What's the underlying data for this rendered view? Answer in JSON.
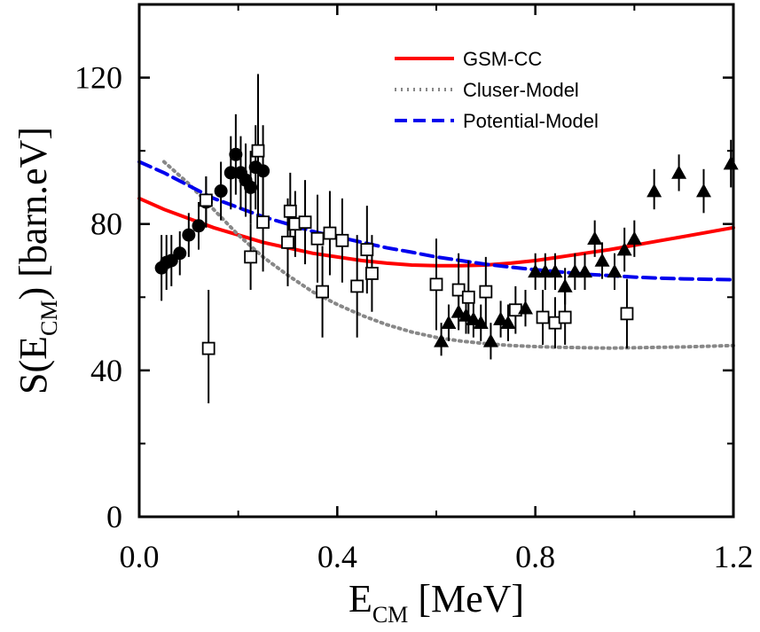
{
  "chart_data": {
    "type": "scatter",
    "title": "",
    "xlabel_main": "E",
    "xlabel_sub": "CM",
    "xlabel_rest": " [MeV]",
    "ylabel_main": "S(E",
    "ylabel_sub": "CM",
    "ylabel_rest": ") [barn.eV]",
    "xlim": [
      0.0,
      1.2
    ],
    "ylim": [
      0,
      140
    ],
    "xticks": [
      0.0,
      0.4,
      0.8,
      1.2
    ],
    "xtick_labels": [
      "0.0",
      "0.4",
      "0.8",
      "1.2"
    ],
    "yticks": [
      0,
      40,
      80,
      120
    ],
    "ytick_labels": [
      "0",
      "40",
      "80",
      "120"
    ],
    "grid": false,
    "legend_position": "top-center",
    "curves": [
      {
        "name": "GSM-CC",
        "style": "solid",
        "color": "#ff0000",
        "x": [
          0.0,
          0.05,
          0.1,
          0.15,
          0.2,
          0.25,
          0.3,
          0.35,
          0.4,
          0.45,
          0.5,
          0.55,
          0.6,
          0.65,
          0.7,
          0.75,
          0.8,
          0.85,
          0.9,
          0.95,
          1.0,
          1.05,
          1.1,
          1.15,
          1.2
        ],
        "y": [
          87,
          84,
          81.5,
          79,
          77,
          75,
          73.5,
          72,
          71,
          70,
          69.3,
          68.8,
          68.6,
          68.6,
          68.8,
          69.3,
          70,
          71,
          72,
          73,
          74.2,
          75.4,
          76.6,
          77.8,
          79
        ]
      },
      {
        "name": "Cluser-Model",
        "style": "dotted",
        "color": "#888888",
        "x": [
          0.05,
          0.1,
          0.15,
          0.2,
          0.25,
          0.3,
          0.35,
          0.4,
          0.45,
          0.5,
          0.55,
          0.6,
          0.65,
          0.7,
          0.75,
          0.8,
          0.85,
          0.9,
          0.95,
          1.0,
          1.05,
          1.1,
          1.15,
          1.2
        ],
        "y": [
          97,
          91,
          84,
          77,
          71,
          66,
          61.5,
          58,
          55,
          52.5,
          50.5,
          49,
          48,
          47.3,
          46.8,
          46.5,
          46.3,
          46.2,
          46.1,
          46.2,
          46.3,
          46.4,
          46.6,
          46.8
        ]
      },
      {
        "name": "Potential-Model",
        "style": "dashed",
        "color": "#0000ee",
        "x": [
          0.0,
          0.05,
          0.1,
          0.15,
          0.2,
          0.25,
          0.3,
          0.35,
          0.4,
          0.45,
          0.5,
          0.55,
          0.6,
          0.65,
          0.7,
          0.75,
          0.8,
          0.85,
          0.9,
          0.95,
          1.0,
          1.05,
          1.1,
          1.15,
          1.2
        ],
        "y": [
          97,
          94,
          90.5,
          87,
          84.5,
          82,
          80,
          78,
          76.5,
          75,
          73.5,
          72.3,
          71,
          70,
          69,
          68.2,
          67.5,
          66.9,
          66.3,
          65.9,
          65.5,
          65.2,
          65,
          64.9,
          64.8
        ]
      }
    ],
    "data_sets": [
      {
        "marker": "filled-circle",
        "points": [
          {
            "x": 0.045,
            "y": 68,
            "lo": 59,
            "hi": 77
          },
          {
            "x": 0.055,
            "y": 69.5,
            "lo": 62,
            "hi": 77
          },
          {
            "x": 0.065,
            "y": 70,
            "lo": 63,
            "hi": 77
          },
          {
            "x": 0.082,
            "y": 72,
            "lo": 66,
            "hi": 78
          },
          {
            "x": 0.1,
            "y": 77,
            "lo": 71,
            "hi": 83
          },
          {
            "x": 0.12,
            "y": 79.5,
            "lo": 73,
            "hi": 86
          },
          {
            "x": 0.135,
            "y": 86,
            "lo": 79,
            "hi": 93
          },
          {
            "x": 0.165,
            "y": 89,
            "lo": 81,
            "hi": 97
          },
          {
            "x": 0.185,
            "y": 94,
            "lo": 84,
            "hi": 104
          },
          {
            "x": 0.195,
            "y": 99,
            "lo": 88,
            "hi": 110
          },
          {
            "x": 0.205,
            "y": 94,
            "lo": 84,
            "hi": 104
          },
          {
            "x": 0.215,
            "y": 92,
            "lo": 82,
            "hi": 102
          },
          {
            "x": 0.225,
            "y": 90,
            "lo": 80,
            "hi": 100
          },
          {
            "x": 0.235,
            "y": 95.5,
            "lo": 84,
            "hi": 107
          },
          {
            "x": 0.25,
            "y": 94.5,
            "lo": 82,
            "hi": 107
          }
        ]
      },
      {
        "marker": "open-square",
        "points": [
          {
            "x": 0.135,
            "y": 86.5,
            "lo": 80,
            "hi": 93
          },
          {
            "x": 0.14,
            "y": 46,
            "lo": 31,
            "hi": 62
          },
          {
            "x": 0.225,
            "y": 71,
            "lo": 62,
            "hi": 80
          },
          {
            "x": 0.24,
            "y": 100,
            "lo": 82,
            "hi": 121
          },
          {
            "x": 0.25,
            "y": 80.5,
            "lo": 67,
            "hi": 94
          },
          {
            "x": 0.3,
            "y": 75,
            "lo": 63,
            "hi": 87
          },
          {
            "x": 0.305,
            "y": 83.5,
            "lo": 74,
            "hi": 94
          },
          {
            "x": 0.315,
            "y": 80,
            "lo": 71,
            "hi": 89
          },
          {
            "x": 0.335,
            "y": 80.5,
            "lo": 69,
            "hi": 92
          },
          {
            "x": 0.36,
            "y": 76,
            "lo": 64,
            "hi": 88
          },
          {
            "x": 0.37,
            "y": 61.5,
            "lo": 49,
            "hi": 74
          },
          {
            "x": 0.385,
            "y": 77.5,
            "lo": 66,
            "hi": 89
          },
          {
            "x": 0.41,
            "y": 75.5,
            "lo": 64,
            "hi": 87
          },
          {
            "x": 0.44,
            "y": 63,
            "lo": 49,
            "hi": 77
          },
          {
            "x": 0.46,
            "y": 73,
            "lo": 61,
            "hi": 85
          },
          {
            "x": 0.47,
            "y": 66.5,
            "lo": 56,
            "hi": 77
          },
          {
            "x": 0.6,
            "y": 63.5,
            "lo": 51,
            "hi": 76
          },
          {
            "x": 0.645,
            "y": 62,
            "lo": 52,
            "hi": 72
          },
          {
            "x": 0.665,
            "y": 60,
            "lo": 50,
            "hi": 70
          },
          {
            "x": 0.7,
            "y": 61.5,
            "lo": 52,
            "hi": 71
          },
          {
            "x": 0.76,
            "y": 56.5,
            "lo": 50,
            "hi": 63
          },
          {
            "x": 0.815,
            "y": 54.5,
            "lo": 47,
            "hi": 62
          },
          {
            "x": 0.84,
            "y": 53,
            "lo": 46,
            "hi": 60
          },
          {
            "x": 0.86,
            "y": 54.5,
            "lo": 47,
            "hi": 62
          },
          {
            "x": 0.985,
            "y": 55.5,
            "lo": 46,
            "hi": 65
          }
        ]
      },
      {
        "marker": "filled-triangle",
        "points": [
          {
            "x": 0.61,
            "y": 48,
            "lo": 44,
            "hi": 53
          },
          {
            "x": 0.625,
            "y": 53,
            "lo": 48,
            "hi": 58
          },
          {
            "x": 0.645,
            "y": 56,
            "lo": 51,
            "hi": 61
          },
          {
            "x": 0.66,
            "y": 55,
            "lo": 50,
            "hi": 60
          },
          {
            "x": 0.675,
            "y": 54,
            "lo": 49,
            "hi": 59
          },
          {
            "x": 0.69,
            "y": 53,
            "lo": 48,
            "hi": 58
          },
          {
            "x": 0.71,
            "y": 48,
            "lo": 43,
            "hi": 53
          },
          {
            "x": 0.73,
            "y": 54,
            "lo": 49,
            "hi": 59
          },
          {
            "x": 0.745,
            "y": 53,
            "lo": 48,
            "hi": 58
          },
          {
            "x": 0.78,
            "y": 57,
            "lo": 52,
            "hi": 62
          },
          {
            "x": 0.8,
            "y": 67,
            "lo": 62,
            "hi": 72
          },
          {
            "x": 0.82,
            "y": 67,
            "lo": 62,
            "hi": 72
          },
          {
            "x": 0.84,
            "y": 67,
            "lo": 62,
            "hi": 72
          },
          {
            "x": 0.86,
            "y": 63,
            "lo": 58,
            "hi": 68
          },
          {
            "x": 0.88,
            "y": 67,
            "lo": 62,
            "hi": 72
          },
          {
            "x": 0.9,
            "y": 67,
            "lo": 62,
            "hi": 72
          },
          {
            "x": 0.92,
            "y": 76,
            "lo": 71,
            "hi": 81
          },
          {
            "x": 0.935,
            "y": 70,
            "lo": 65,
            "hi": 75
          },
          {
            "x": 0.96,
            "y": 67,
            "lo": 62,
            "hi": 72
          },
          {
            "x": 0.98,
            "y": 73,
            "lo": 67,
            "hi": 79
          },
          {
            "x": 1.0,
            "y": 76,
            "lo": 71,
            "hi": 81
          },
          {
            "x": 1.04,
            "y": 89,
            "lo": 84,
            "hi": 95
          },
          {
            "x": 1.09,
            "y": 94,
            "lo": 89,
            "hi": 99
          },
          {
            "x": 1.14,
            "y": 89,
            "lo": 83,
            "hi": 95
          },
          {
            "x": 1.195,
            "y": 96.5,
            "lo": 90,
            "hi": 103
          }
        ]
      }
    ]
  }
}
